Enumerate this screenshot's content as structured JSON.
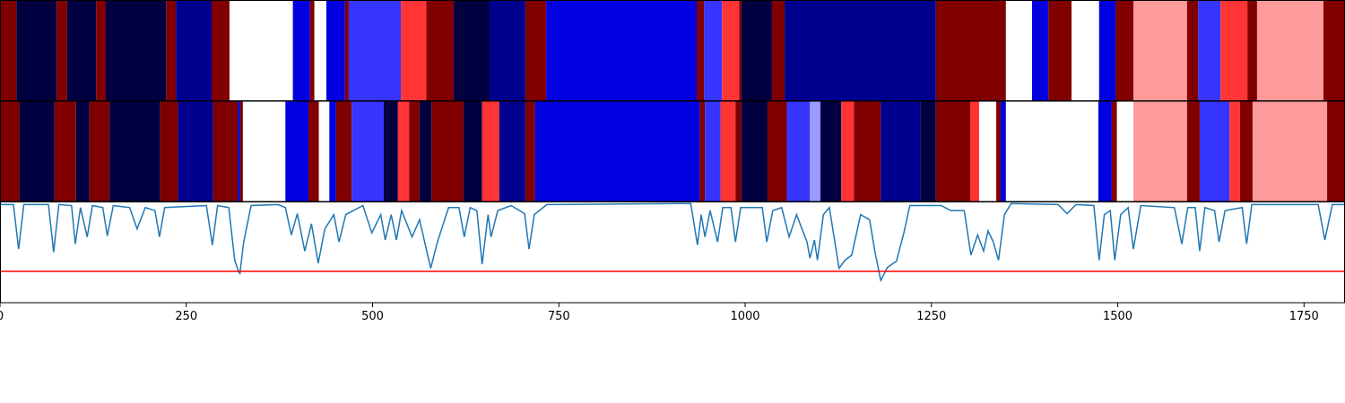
{
  "chart_data": {
    "type": "segments",
    "xlim": [
      0,
      1805
    ],
    "xticks": [
      0,
      250,
      500,
      750,
      1000,
      1250,
      1500,
      1750
    ],
    "ylim": [
      0,
      1
    ],
    "tracks": [
      {
        "edges": [
          0,
          22,
          76,
          90,
          129,
          142,
          223,
          236,
          284,
          308,
          393,
          416,
          422,
          438,
          463,
          468,
          538,
          572,
          609,
          657,
          705,
          733,
          935,
          945,
          969,
          992,
          995,
          1036,
          1053,
          1256,
          1350,
          1385,
          1407,
          1438,
          1475,
          1497,
          1521,
          1593,
          1608,
          1638,
          1674,
          1687,
          1776,
          1805
        ],
        "colors": [
          "#800000",
          "#000040",
          "#800000",
          "#000040",
          "#800000",
          "#000040",
          "#800000",
          "#00008f",
          "#800000",
          "#ffffff",
          "#0000e0",
          "#800000",
          "#ffffff",
          "#0000e0",
          "#800000",
          "#3535ff",
          "#ff3535",
          "#800000",
          "#000040",
          "#00008f",
          "#800000",
          "#0000e0",
          "#800000",
          "#3535ff",
          "#ff3535",
          "#800000",
          "#000040",
          "#800000",
          "#00008f",
          "#800000",
          "#ffffff",
          "#0000e0",
          "#800000",
          "#ffffff",
          "#0000e0",
          "#800000",
          "#ff9a9a",
          "#800000",
          "#3535ff",
          "#ff3535",
          "#800000",
          "#ff9a9a",
          "#800000"
        ]
      },
      {
        "edges": [
          0,
          26,
          73,
          102,
          120,
          147,
          215,
          239,
          286,
          319,
          322,
          326,
          383,
          414,
          428,
          442,
          451,
          472,
          515,
          534,
          549,
          563,
          579,
          622,
          647,
          670,
          705,
          718,
          939,
          946,
          967,
          987,
          995,
          1030,
          1056,
          1087,
          1101,
          1129,
          1146,
          1182,
          1235,
          1256,
          1302,
          1314,
          1337,
          1343,
          1350,
          1474,
          1492,
          1499,
          1521,
          1593,
          1610,
          1650,
          1664,
          1681,
          1781,
          1805
        ],
        "colors": [
          "#800000",
          "#000040",
          "#800000",
          "#000040",
          "#800000",
          "#000040",
          "#800000",
          "#00008f",
          "#800000",
          "#0000e0",
          "#800000",
          "#ffffff",
          "#0000e0",
          "#800000",
          "#ffffff",
          "#0000e0",
          "#800000",
          "#3535ff",
          "#000040",
          "#ff3535",
          "#800000",
          "#000040",
          "#800000",
          "#000040",
          "#ff3535",
          "#00008f",
          "#800000",
          "#0000e0",
          "#800000",
          "#3535ff",
          "#ff3535",
          "#800000",
          "#000040",
          "#800000",
          "#3535ff",
          "#9a9aff",
          "#000040",
          "#ff3535",
          "#800000",
          "#00008f",
          "#000040",
          "#800000",
          "#ff3535",
          "#ffffff",
          "#800000",
          "#0000e0",
          "#ffffff",
          "#0000e0",
          "#800000",
          "#ffffff",
          "#ff9a9a",
          "#800000",
          "#3535ff",
          "#ff3535",
          "#800000",
          "#ff9a9a",
          "#800000"
        ]
      }
    ],
    "line": {
      "color": "#1f77b4",
      "x": [
        0,
        18,
        25,
        32,
        65,
        72,
        79,
        96,
        101,
        108,
        117,
        124,
        138,
        144,
        152,
        174,
        184,
        195,
        208,
        214,
        221,
        277,
        285,
        292,
        307,
        315,
        320,
        322,
        327,
        337,
        373,
        383,
        391,
        399,
        409,
        418,
        427,
        436,
        448,
        455,
        464,
        487,
        499,
        511,
        517,
        525,
        532,
        539,
        553,
        563,
        578,
        587,
        602,
        616,
        623,
        631,
        640,
        647,
        655,
        659,
        668,
        686,
        704,
        710,
        717,
        734,
        927,
        936,
        941,
        946,
        953,
        963,
        970,
        981,
        987,
        994,
        1023,
        1029,
        1037,
        1049,
        1059,
        1069,
        1083,
        1087,
        1093,
        1097,
        1105,
        1113,
        1126,
        1134,
        1143,
        1155,
        1167,
        1174,
        1182,
        1191,
        1203,
        1213,
        1221,
        1263,
        1276,
        1294,
        1303,
        1312,
        1320,
        1326,
        1333,
        1340,
        1348,
        1357,
        1420,
        1432,
        1444,
        1468,
        1475,
        1482,
        1490,
        1496,
        1504,
        1514,
        1521,
        1531,
        1576,
        1586,
        1594,
        1604,
        1610,
        1617,
        1630,
        1636,
        1644,
        1667,
        1673,
        1680,
        1769,
        1778,
        1788,
        1805
      ],
      "values": [
        0.97,
        0.97,
        0.53,
        0.97,
        0.97,
        0.5,
        0.97,
        0.96,
        0.58,
        0.94,
        0.65,
        0.96,
        0.94,
        0.66,
        0.96,
        0.94,
        0.73,
        0.94,
        0.91,
        0.65,
        0.94,
        0.96,
        0.57,
        0.96,
        0.94,
        0.42,
        0.31,
        0.29,
        0.6,
        0.96,
        0.97,
        0.94,
        0.67,
        0.88,
        0.51,
        0.78,
        0.39,
        0.73,
        0.87,
        0.6,
        0.87,
        0.96,
        0.69,
        0.87,
        0.62,
        0.87,
        0.62,
        0.91,
        0.65,
        0.82,
        0.34,
        0.6,
        0.94,
        0.94,
        0.65,
        0.94,
        0.91,
        0.38,
        0.87,
        0.65,
        0.91,
        0.96,
        0.88,
        0.53,
        0.87,
        0.97,
        0.98,
        0.57,
        0.87,
        0.65,
        0.91,
        0.6,
        0.94,
        0.94,
        0.6,
        0.94,
        0.94,
        0.6,
        0.91,
        0.94,
        0.65,
        0.87,
        0.6,
        0.44,
        0.62,
        0.42,
        0.87,
        0.94,
        0.34,
        0.42,
        0.47,
        0.87,
        0.82,
        0.51,
        0.22,
        0.35,
        0.41,
        0.69,
        0.96,
        0.96,
        0.91,
        0.91,
        0.47,
        0.67,
        0.51,
        0.71,
        0.6,
        0.42,
        0.87,
        0.98,
        0.97,
        0.88,
        0.97,
        0.96,
        0.42,
        0.87,
        0.91,
        0.42,
        0.87,
        0.94,
        0.53,
        0.96,
        0.94,
        0.58,
        0.94,
        0.94,
        0.51,
        0.94,
        0.91,
        0.6,
        0.91,
        0.94,
        0.58,
        0.97,
        0.97,
        0.62,
        0.97,
        0.97
      ]
    },
    "threshold": {
      "value": 0.31,
      "color": "#ff0000"
    }
  }
}
